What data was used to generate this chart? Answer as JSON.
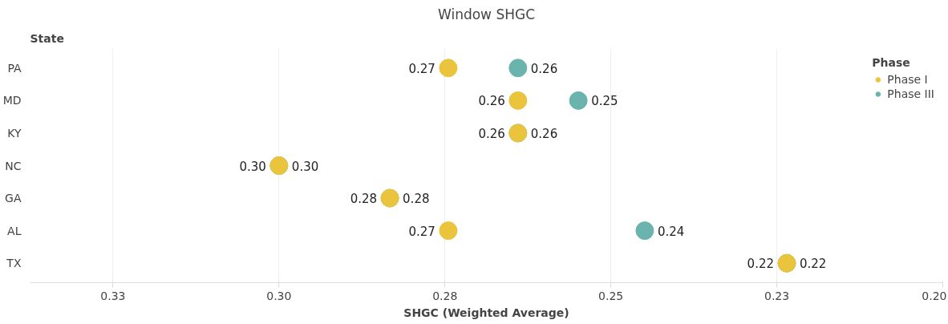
{
  "chart_data": {
    "type": "scatter",
    "orientation": "horizontal",
    "title": "Window SHGC",
    "xlabel": "SHGC (Weighted Average)",
    "ylabel": "State",
    "legend_title": "Phase",
    "legend": "top right",
    "grid": "x",
    "marker": "circle",
    "categories": [
      "PA",
      "MD",
      "KY",
      "NC",
      "GA",
      "AL",
      "TX"
    ],
    "xlim": [
      0.3375,
      0.2
    ],
    "xticks": [
      {
        "value": 0.325,
        "label": "0.33"
      },
      {
        "value": 0.3,
        "label": "0.30"
      },
      {
        "value": 0.275,
        "label": "0.28"
      },
      0.25,
      {
        "value": 0.225,
        "label": "0.23"
      },
      {
        "value": 0.2,
        "label": "0.20"
      }
    ],
    "series": [
      {
        "name": "Phase I",
        "color": "#ebc43e",
        "values": [
          0.2745,
          0.264,
          0.264,
          0.3,
          0.2833,
          0.2745,
          0.2235
        ],
        "value_labels": [
          "0.27",
          "0.26",
          "0.26",
          "0.30",
          "0.28",
          "0.27",
          "0.22"
        ]
      },
      {
        "name": "Phase III",
        "color": "#6ab4ad",
        "values": [
          0.264,
          0.2549,
          0.264,
          0.3,
          0.2833,
          0.2449,
          0.2235
        ],
        "value_labels": [
          "0.26",
          "0.25",
          "0.26",
          "0.30",
          "0.28",
          "0.24",
          "0.22"
        ]
      }
    ]
  }
}
